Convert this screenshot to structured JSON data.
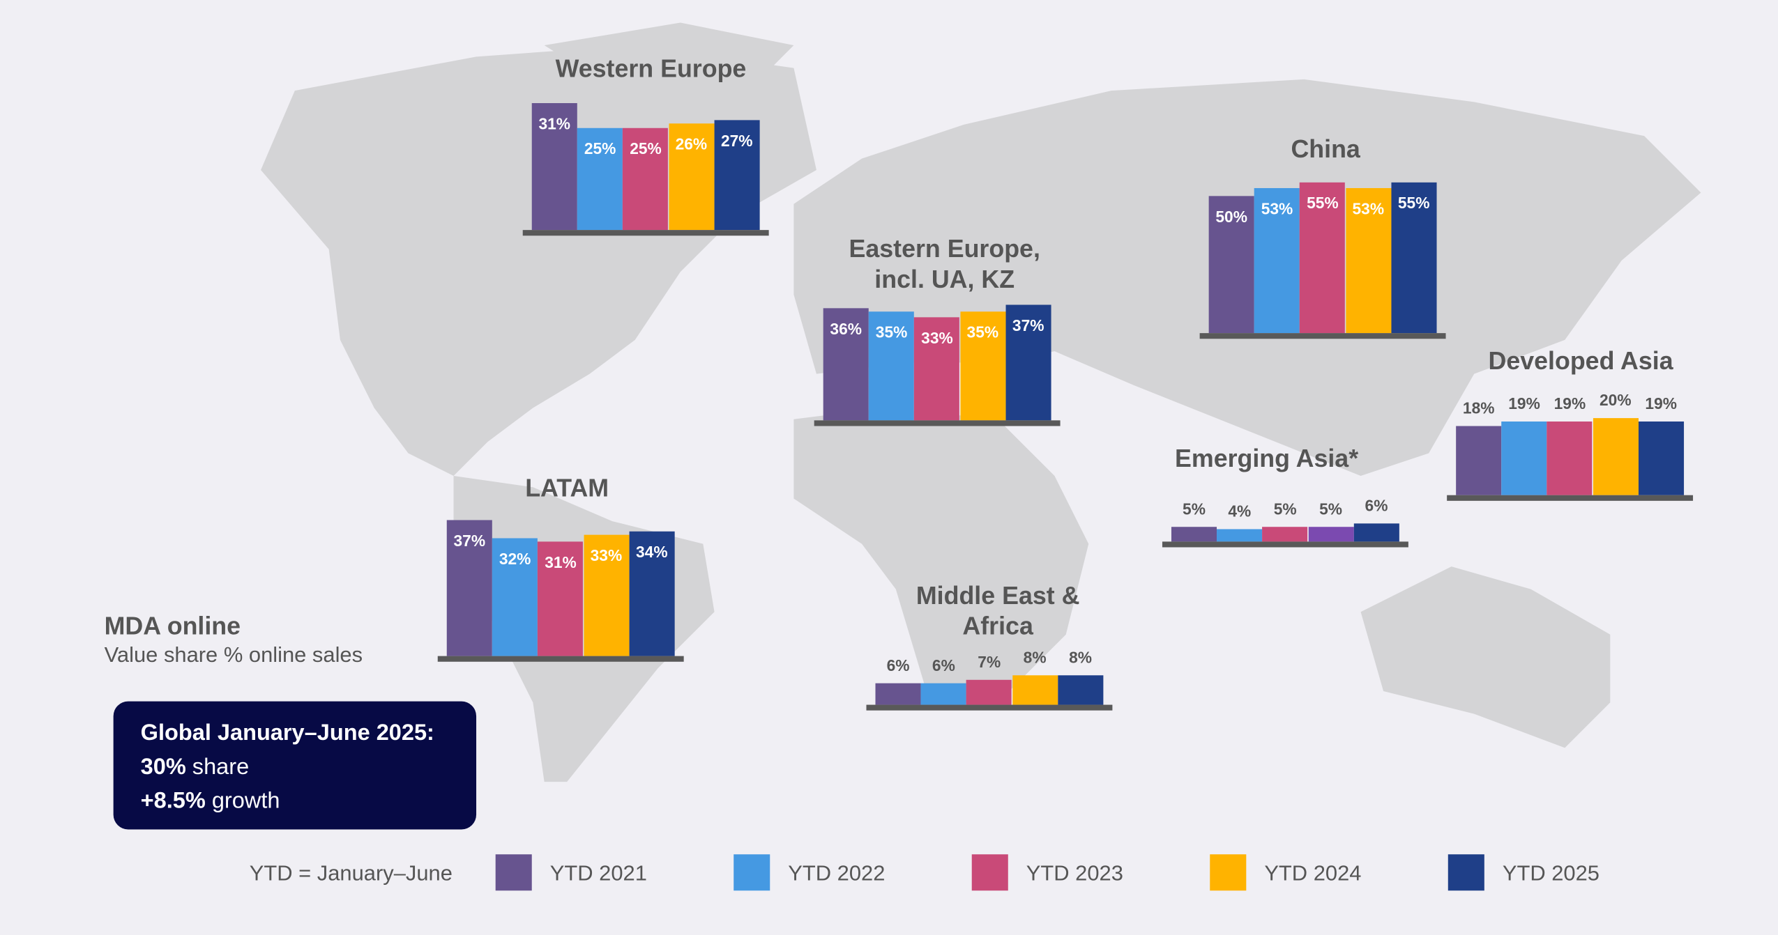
{
  "chart_data": {
    "type": "bar",
    "title": "MDA online",
    "subtitle": "Value share % online sales",
    "categories": [
      "YTD 2021",
      "YTD 2022",
      "YTD 2023",
      "YTD 2024",
      "YTD 2025"
    ],
    "colors": [
      "#67548f",
      "#4599e2",
      "#c94a78",
      "#ffb300",
      "#1f3f88"
    ],
    "regions": [
      {
        "name": "Western Europe",
        "lines": [
          "Western Europe"
        ],
        "values": [
          31,
          25,
          25,
          26,
          27
        ],
        "labels": [
          "31%",
          "25%",
          "25%",
          "26%",
          "27%"
        ]
      },
      {
        "name": "Eastern Europe, incl. UA, KZ",
        "lines": [
          "Eastern Europe,",
          "incl. UA, KZ"
        ],
        "values": [
          36,
          35,
          33,
          35,
          37
        ],
        "labels": [
          "36%",
          "35%",
          "33%",
          "35%",
          "37%"
        ]
      },
      {
        "name": "China",
        "lines": [
          "China"
        ],
        "values": [
          50,
          53,
          55,
          53,
          55
        ],
        "labels": [
          "50%",
          "53%",
          "55%",
          "53%",
          "55%"
        ]
      },
      {
        "name": "Developed Asia",
        "lines": [
          "Developed Asia"
        ],
        "values": [
          18,
          19,
          19,
          20,
          19
        ],
        "labels": [
          "18%",
          "19%",
          "19%",
          "20%",
          "19%"
        ]
      },
      {
        "name": "Emerging Asia*",
        "lines": [
          "Emerging Asia*"
        ],
        "values": [
          5,
          4,
          5,
          5,
          6
        ],
        "labels": [
          "5%",
          "4%",
          "5%",
          "5%",
          "6%"
        ],
        "bar_colors": [
          "#67548f",
          "#4599e2",
          "#c94a78",
          "#7b4ab0",
          "#1f3f88"
        ]
      },
      {
        "name": "LATAM",
        "lines": [
          "LATAM"
        ],
        "values": [
          37,
          32,
          31,
          33,
          34
        ],
        "labels": [
          "37%",
          "32%",
          "31%",
          "33%",
          "34%"
        ]
      },
      {
        "name": "Middle East & Africa",
        "lines": [
          "Middle East &",
          "Africa"
        ],
        "values": [
          6,
          6,
          7,
          8,
          8
        ],
        "labels": [
          "6%",
          "6%",
          "7%",
          "8%",
          "8%"
        ]
      }
    ],
    "legend": {
      "note": "YTD = January–June",
      "placement": "bottom",
      "items": [
        "YTD 2021",
        "YTD 2022",
        "YTD 2023",
        "YTD 2024",
        "YTD 2025"
      ]
    }
  },
  "global": {
    "heading": "Global January–June 2025:",
    "share_value": "30%",
    "share_text": " share",
    "growth_value": "+8.5%",
    "growth_text": " growth"
  }
}
